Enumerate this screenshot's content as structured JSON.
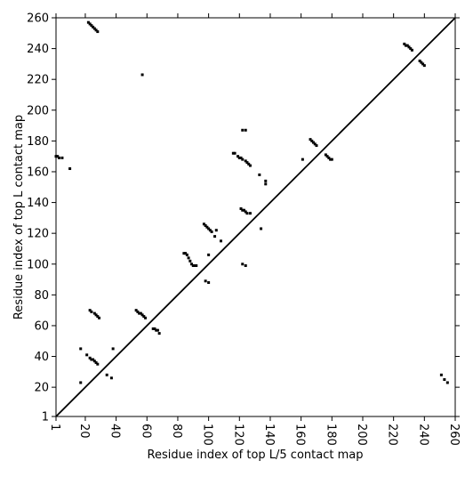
{
  "chart_data": {
    "type": "scatter",
    "xlabel": "Residue index of top L/5 contact map",
    "ylabel": "Residue index of top L contact map",
    "xlim": [
      1,
      260
    ],
    "ylim": [
      1,
      260
    ],
    "xticks": [
      1,
      20,
      40,
      60,
      80,
      100,
      120,
      140,
      160,
      180,
      200,
      220,
      240,
      260
    ],
    "yticks": [
      1,
      20,
      40,
      60,
      80,
      100,
      120,
      140,
      160,
      180,
      200,
      220,
      240,
      260
    ],
    "color": "#000000",
    "x": [
      22,
      23,
      24,
      25,
      26,
      27,
      28,
      57,
      1,
      2,
      3,
      5,
      10,
      122,
      124,
      116,
      117,
      119,
      120,
      121,
      122,
      124,
      125,
      126,
      127,
      133,
      137,
      137,
      161,
      166,
      167,
      168,
      169,
      170,
      176,
      177,
      178,
      179,
      180,
      227,
      228,
      229,
      230,
      231,
      232,
      237,
      238,
      239,
      240,
      97,
      98,
      99,
      100,
      101,
      102,
      105,
      108,
      104,
      121,
      122,
      123,
      124,
      125,
      127,
      134,
      84,
      85,
      86,
      87,
      88,
      89,
      90,
      91,
      92,
      100,
      98,
      100,
      122,
      124,
      23,
      24,
      26,
      27,
      28,
      29,
      53,
      54,
      55,
      56,
      57,
      58,
      59,
      64,
      65,
      66,
      67,
      68,
      17,
      21,
      23,
      24,
      25,
      26,
      27,
      28,
      38,
      17,
      34,
      37,
      251,
      253,
      255
    ],
    "y": [
      257,
      256,
      255,
      254,
      253,
      252,
      251,
      223,
      170,
      170,
      169,
      169,
      162,
      187,
      187,
      172,
      172,
      170,
      169,
      169,
      168,
      167,
      166,
      165,
      164,
      158,
      154,
      152,
      168,
      181,
      180,
      179,
      178,
      177,
      171,
      170,
      169,
      168,
      168,
      243,
      242,
      242,
      241,
      240,
      239,
      232,
      231,
      230,
      229,
      126,
      125,
      124,
      123,
      122,
      121,
      122,
      115,
      118,
      136,
      135,
      135,
      134,
      133,
      133,
      123,
      107,
      107,
      106,
      104,
      102,
      100,
      99,
      99,
      99,
      106,
      89,
      88,
      100,
      99,
      70,
      69,
      68,
      67,
      66,
      65,
      70,
      69,
      68,
      68,
      67,
      66,
      65,
      58,
      58,
      57,
      57,
      55,
      45,
      41,
      39,
      38,
      38,
      37,
      36,
      35,
      45,
      23,
      28,
      26,
      28,
      25,
      23
    ]
  }
}
